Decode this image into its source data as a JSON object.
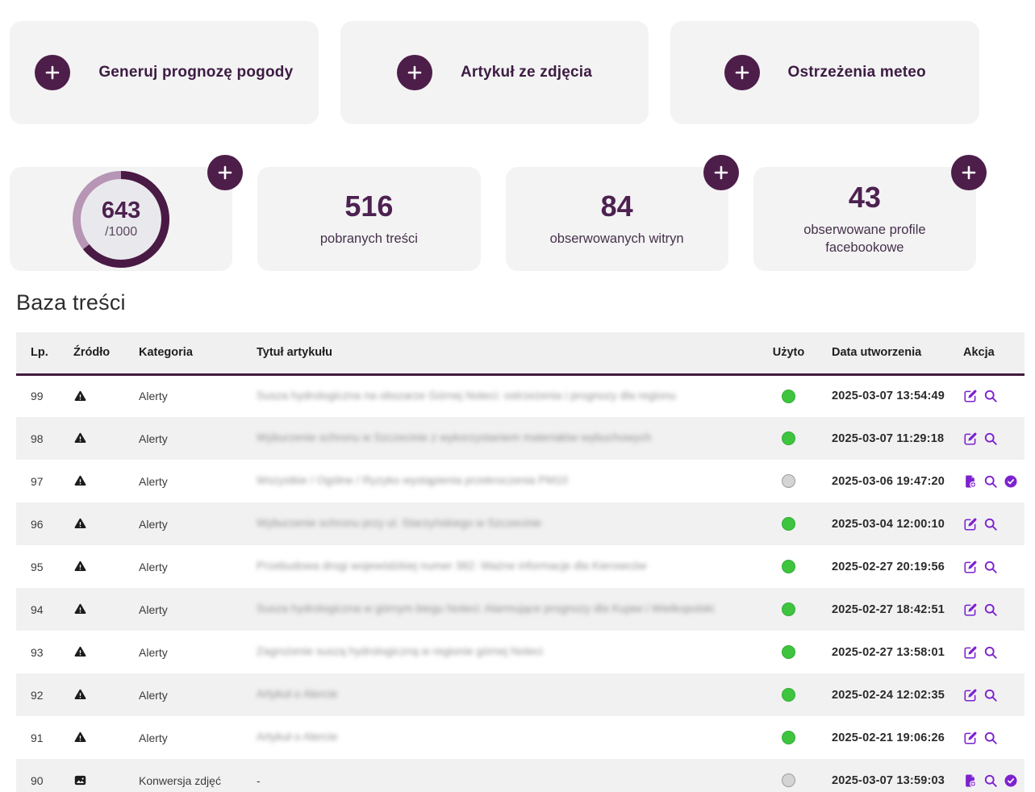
{
  "colors": {
    "purple_dark": "#4d1e49",
    "ring_dark": "#491a44",
    "ring_light": "#b795b4",
    "accent_violet": "#7d22ce",
    "used_green": "#3fc43f",
    "unused_gray": "#d4d4d4",
    "card_bg": "#f3f3f4"
  },
  "action_cards": [
    {
      "label": "Generuj prognozę pogody"
    },
    {
      "label": "Artykuł ze zdjęcia"
    },
    {
      "label": "Ostrzeżenia meteo"
    }
  ],
  "stats": {
    "quota": {
      "value": "643",
      "total": "/1000",
      "percent": 64.3
    },
    "cards": [
      {
        "value": "516",
        "label": "pobranych treści",
        "add": false
      },
      {
        "value": "84",
        "label": "obserwowanych witryn",
        "add": true
      },
      {
        "value": "43",
        "label": "obserwowane profile facebookowe",
        "add": true
      }
    ]
  },
  "section_title": "Baza treści",
  "table": {
    "columns": {
      "lp": "Lp.",
      "source": "Źródło",
      "category": "Kategoria",
      "title": "Tytuł artykułu",
      "used": "Użyto",
      "created": "Data utworzenia",
      "action": "Akcja"
    },
    "rows": [
      {
        "lp": "99",
        "source": "warning",
        "category": "Alerty",
        "title": "Susza hydrologiczna na obszarze Górnej Noteci: ostrzeżenia i prognozy dla regionu",
        "blurred": true,
        "used": true,
        "created": "2025-03-07 13:54:49",
        "actions": [
          "edit",
          "search"
        ]
      },
      {
        "lp": "98",
        "source": "warning",
        "category": "Alerty",
        "title": "Wyburzenie schronu w Szczecinie z wykorzystaniem materiałów wybuchowych",
        "blurred": true,
        "used": true,
        "created": "2025-03-07 11:29:18",
        "actions": [
          "edit",
          "search"
        ]
      },
      {
        "lp": "97",
        "source": "warning",
        "category": "Alerty",
        "title": "Wszystkie / Ogólne / Ryzyko wystąpienia przekroczenia PM10",
        "blurred": true,
        "used": false,
        "created": "2025-03-06 19:47:20",
        "actions": [
          "doc-add",
          "search",
          "check"
        ]
      },
      {
        "lp": "96",
        "source": "warning",
        "category": "Alerty",
        "title": "Wyburzenie schronu przy ul. Starzyńskiego w Szczecinie",
        "blurred": true,
        "used": true,
        "created": "2025-03-04 12:00:10",
        "actions": [
          "edit",
          "search"
        ]
      },
      {
        "lp": "95",
        "source": "warning",
        "category": "Alerty",
        "title": "Przebudowa drogi wojewódzkiej numer 382: Ważne informacje dla Kierowców",
        "blurred": true,
        "used": true,
        "created": "2025-02-27 20:19:56",
        "actions": [
          "edit",
          "search"
        ]
      },
      {
        "lp": "94",
        "source": "warning",
        "category": "Alerty",
        "title": "Susza hydrologiczna w górnym biegu Noteci: Alarmujące prognozy dla Kujaw i Wielkopolski",
        "blurred": true,
        "used": true,
        "created": "2025-02-27 18:42:51",
        "actions": [
          "edit",
          "search"
        ]
      },
      {
        "lp": "93",
        "source": "warning",
        "category": "Alerty",
        "title": "Zagrożenie suszą hydrologiczną w regionie górnej Noteci",
        "blurred": true,
        "used": true,
        "created": "2025-02-27 13:58:01",
        "actions": [
          "edit",
          "search"
        ]
      },
      {
        "lp": "92",
        "source": "warning",
        "category": "Alerty",
        "title": "Artykuł o Alercie",
        "blurred": true,
        "used": true,
        "created": "2025-02-24 12:02:35",
        "actions": [
          "edit",
          "search"
        ]
      },
      {
        "lp": "91",
        "source": "warning",
        "category": "Alerty",
        "title": "Artykuł o Alercie",
        "blurred": true,
        "used": true,
        "created": "2025-02-21 19:06:26",
        "actions": [
          "edit",
          "search"
        ]
      },
      {
        "lp": "90",
        "source": "image",
        "category": "Konwersja zdjęć",
        "title": "-",
        "blurred": false,
        "used": false,
        "created": "2025-03-07 13:59:03",
        "actions": [
          "doc-add",
          "search",
          "check"
        ]
      }
    ]
  }
}
